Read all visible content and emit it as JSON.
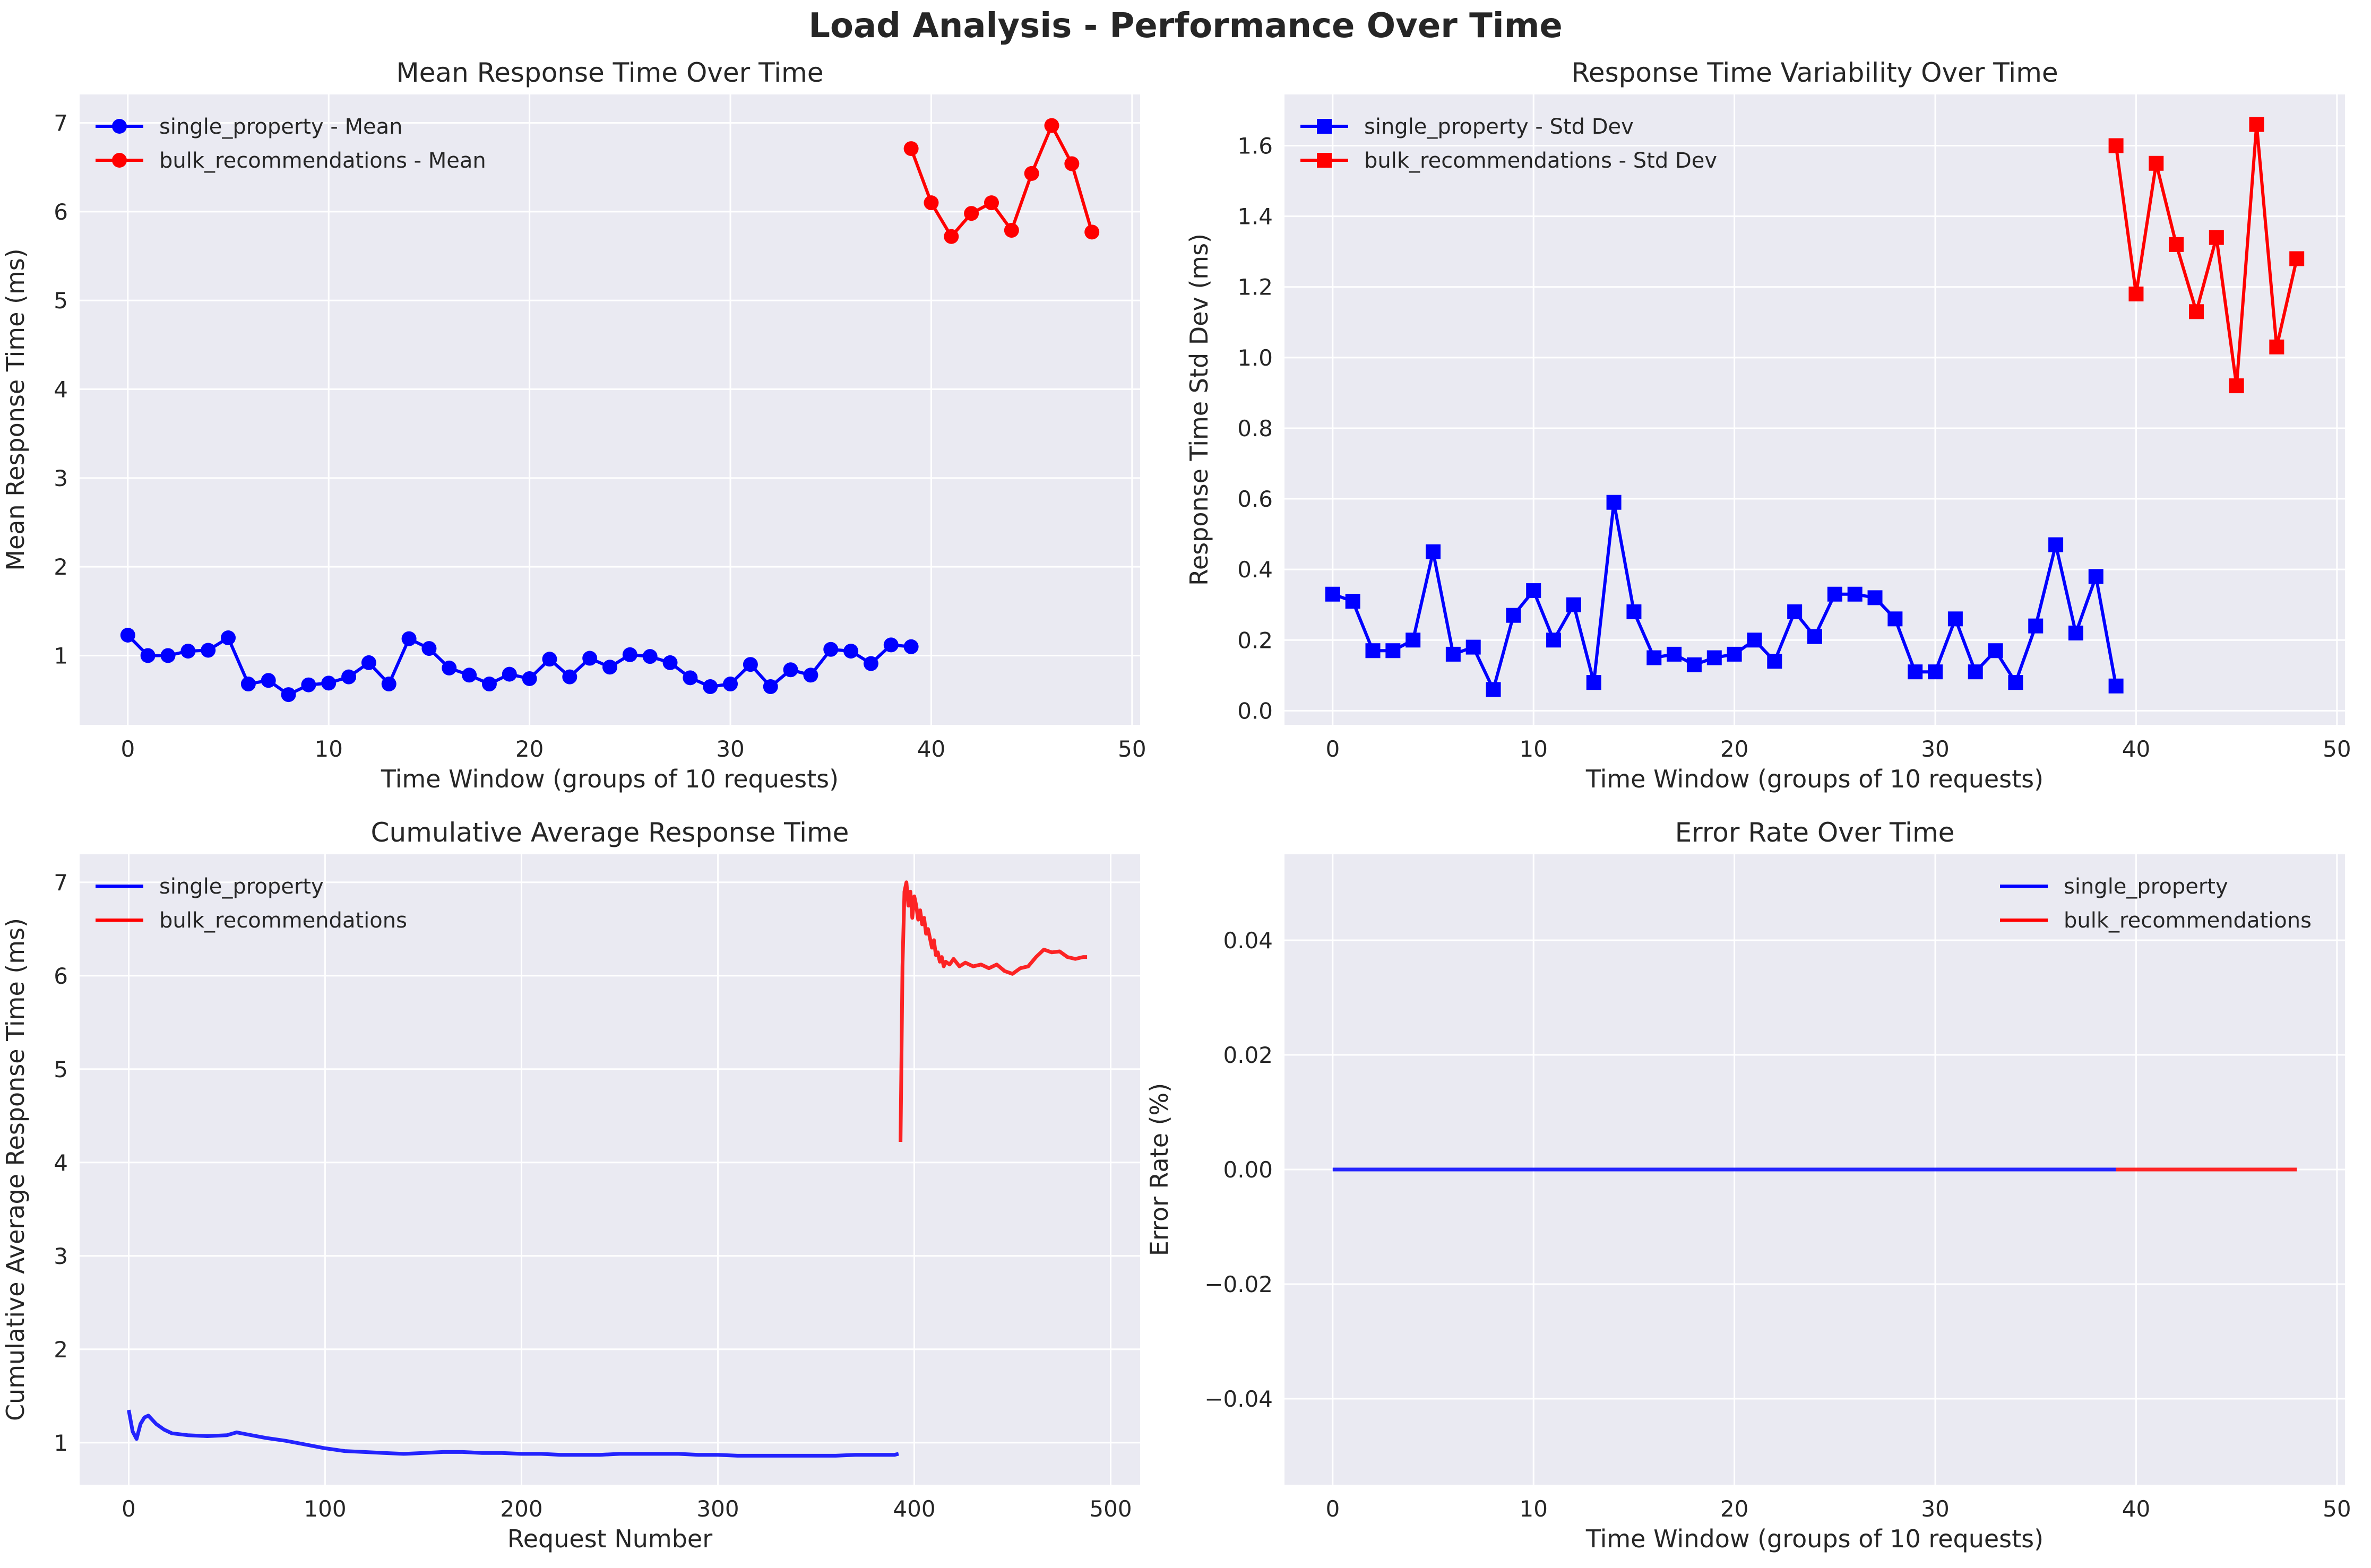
{
  "figure_title": "Load Analysis - Performance Over Time",
  "chart_data": [
    {
      "type": "line",
      "title": "Mean Response Time Over Time",
      "xlabel": "Time Window (groups of 10 requests)",
      "ylabel": "Mean Response Time (ms)",
      "xlim": [
        -2.4,
        50.4
      ],
      "ylim": [
        0.22,
        7.32
      ],
      "xticks": [
        0,
        10,
        20,
        30,
        40,
        50
      ],
      "yticks": [
        1,
        2,
        3,
        4,
        5,
        6,
        7
      ],
      "grid": true,
      "legend_position": "top-left",
      "series": [
        {
          "name": "single_property - Mean",
          "color": "#0000ff",
          "marker": "circle",
          "x": [
            0,
            1,
            2,
            3,
            4,
            5,
            6,
            7,
            8,
            9,
            10,
            11,
            12,
            13,
            14,
            15,
            16,
            17,
            18,
            19,
            20,
            21,
            22,
            23,
            24,
            25,
            26,
            27,
            28,
            29,
            30,
            31,
            32,
            33,
            34,
            35,
            36,
            37,
            38,
            39
          ],
          "values": [
            1.23,
            1.0,
            1.0,
            1.05,
            1.06,
            1.2,
            0.68,
            0.72,
            0.56,
            0.67,
            0.69,
            0.76,
            0.92,
            0.68,
            1.19,
            1.08,
            0.86,
            0.78,
            0.68,
            0.79,
            0.74,
            0.96,
            0.76,
            0.97,
            0.87,
            1.01,
            0.99,
            0.92,
            0.75,
            0.65,
            0.68,
            0.9,
            0.65,
            0.84,
            0.78,
            1.07,
            1.05,
            0.91,
            1.12,
            1.1
          ]
        },
        {
          "name": "bulk_recommendations - Mean",
          "color": "#ff0000",
          "marker": "circle",
          "x": [
            39,
            40,
            41,
            42,
            43,
            44,
            45,
            46,
            47,
            48
          ],
          "values": [
            6.71,
            6.1,
            5.72,
            5.98,
            6.1,
            5.79,
            6.43,
            6.97,
            6.54,
            5.77
          ]
        }
      ]
    },
    {
      "type": "line",
      "title": "Response Time Variability Over Time",
      "xlabel": "Time Window (groups of 10 requests)",
      "ylabel": "Response Time Std Dev (ms)",
      "xlim": [
        -2.4,
        50.4
      ],
      "ylim": [
        -0.04,
        1.745
      ],
      "xticks": [
        0,
        10,
        20,
        30,
        40,
        50
      ],
      "yticks": [
        0.0,
        0.2,
        0.4,
        0.6,
        0.8,
        1.0,
        1.2,
        1.4,
        1.6
      ],
      "grid": true,
      "legend_position": "top-left",
      "series": [
        {
          "name": "single_property - Std Dev",
          "color": "#0000ff",
          "marker": "square",
          "x": [
            0,
            1,
            2,
            3,
            4,
            5,
            6,
            7,
            8,
            9,
            10,
            11,
            12,
            13,
            14,
            15,
            16,
            17,
            18,
            19,
            20,
            21,
            22,
            23,
            24,
            25,
            26,
            27,
            28,
            29,
            30,
            31,
            32,
            33,
            34,
            35,
            36,
            37,
            38,
            39
          ],
          "values": [
            0.33,
            0.31,
            0.17,
            0.17,
            0.2,
            0.45,
            0.16,
            0.18,
            0.06,
            0.27,
            0.34,
            0.2,
            0.3,
            0.08,
            0.59,
            0.28,
            0.15,
            0.16,
            0.13,
            0.15,
            0.16,
            0.2,
            0.14,
            0.28,
            0.21,
            0.33,
            0.33,
            0.32,
            0.26,
            0.11,
            0.11,
            0.26,
            0.11,
            0.17,
            0.08,
            0.24,
            0.47,
            0.22,
            0.38,
            0.07
          ]
        },
        {
          "name": "bulk_recommendations - Std Dev",
          "color": "#ff0000",
          "marker": "square",
          "x": [
            39,
            40,
            41,
            42,
            43,
            44,
            45,
            46,
            47,
            48
          ],
          "values": [
            1.6,
            1.18,
            1.55,
            1.32,
            1.13,
            1.34,
            0.92,
            1.66,
            1.03,
            1.28
          ]
        }
      ]
    },
    {
      "type": "line",
      "title": "Cumulative Average Response Time",
      "xlabel": "Request Number",
      "ylabel": "Cumulative Average Response Time (ms)",
      "xlim": [
        -25,
        515
      ],
      "ylim": [
        0.55,
        7.3
      ],
      "xticks": [
        0,
        100,
        200,
        300,
        400,
        500
      ],
      "yticks": [
        1,
        2,
        3,
        4,
        5,
        6,
        7
      ],
      "grid": true,
      "legend_position": "top-left",
      "series": [
        {
          "name": "single_property",
          "color": "#0000ff",
          "x": [
            0,
            2,
            4,
            6,
            8,
            10,
            14,
            18,
            22,
            30,
            40,
            50,
            55,
            60,
            70,
            80,
            90,
            100,
            110,
            120,
            130,
            140,
            150,
            160,
            170,
            180,
            190,
            200,
            210,
            220,
            230,
            240,
            250,
            260,
            270,
            280,
            290,
            300,
            310,
            320,
            330,
            340,
            350,
            360,
            370,
            380,
            390,
            392
          ],
          "values": [
            1.35,
            1.12,
            1.04,
            1.2,
            1.27,
            1.29,
            1.2,
            1.14,
            1.1,
            1.08,
            1.07,
            1.08,
            1.11,
            1.09,
            1.05,
            1.02,
            0.98,
            0.94,
            0.91,
            0.9,
            0.89,
            0.88,
            0.89,
            0.9,
            0.9,
            0.89,
            0.89,
            0.88,
            0.88,
            0.87,
            0.87,
            0.87,
            0.88,
            0.88,
            0.88,
            0.88,
            0.87,
            0.87,
            0.86,
            0.86,
            0.86,
            0.86,
            0.86,
            0.86,
            0.87,
            0.87,
            0.87,
            0.88
          ]
        },
        {
          "name": "bulk_recommendations",
          "color": "#ff0000",
          "x": [
            393,
            394,
            395,
            396,
            397,
            398,
            399,
            400,
            401,
            402,
            403,
            404,
            405,
            406,
            407,
            408,
            409,
            410,
            411,
            412,
            413,
            414,
            415,
            416,
            418,
            420,
            423,
            426,
            430,
            434,
            438,
            442,
            446,
            450,
            454,
            458,
            462,
            466,
            470,
            474,
            478,
            482,
            486,
            488
          ],
          "values": [
            4.22,
            6.1,
            6.9,
            7.0,
            6.75,
            6.9,
            6.62,
            6.85,
            6.75,
            6.6,
            6.7,
            6.55,
            6.62,
            6.45,
            6.5,
            6.4,
            6.3,
            6.38,
            6.22,
            6.25,
            6.15,
            6.2,
            6.1,
            6.15,
            6.12,
            6.18,
            6.1,
            6.14,
            6.1,
            6.12,
            6.08,
            6.12,
            6.05,
            6.02,
            6.08,
            6.1,
            6.2,
            6.28,
            6.25,
            6.26,
            6.2,
            6.18,
            6.2,
            6.2
          ]
        }
      ]
    },
    {
      "type": "line",
      "title": "Error Rate Over Time",
      "xlabel": "Time Window (groups of 10 requests)",
      "ylabel": "Error Rate (%)",
      "xlim": [
        -2.4,
        50.4
      ],
      "ylim": [
        -0.055,
        0.055
      ],
      "xticks": [
        0,
        10,
        20,
        30,
        40,
        50
      ],
      "yticks": [
        -0.04,
        -0.02,
        0.0,
        0.02,
        0.04
      ],
      "ytick_labels": [
        "−0.04",
        "−0.02",
        "0.00",
        "0.02",
        "0.04"
      ],
      "grid": true,
      "legend_position": "top-right",
      "series": [
        {
          "name": "single_property",
          "color": "#0000ff",
          "x": [
            0,
            39
          ],
          "values": [
            0,
            0
          ]
        },
        {
          "name": "bulk_recommendations",
          "color": "#ff0000",
          "x": [
            39,
            48
          ],
          "values": [
            0,
            0
          ]
        }
      ]
    }
  ]
}
